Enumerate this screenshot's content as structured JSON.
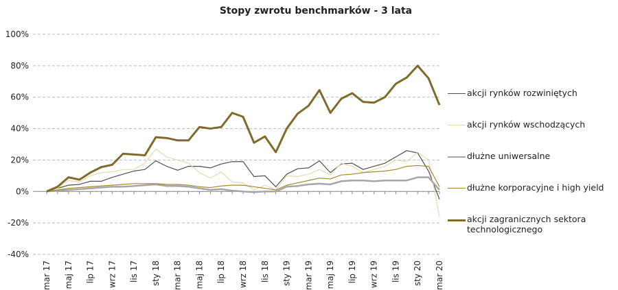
{
  "chart_data": {
    "type": "line",
    "title": "Stopy zwrotu benchmarków - 3 lata",
    "categories": [
      "mar 17",
      null,
      "maj 17",
      null,
      "lip 17",
      null,
      "wrz 17",
      null,
      "lis 17",
      null,
      "sty 18",
      null,
      "mar 18",
      null,
      "maj 18",
      null,
      "lip 18",
      null,
      "wrz 18",
      null,
      "lis 18",
      null,
      "sty 19",
      null,
      "mar 19",
      null,
      "maj 19",
      null,
      "lip 19",
      null,
      "wrz 19",
      null,
      "lis 19",
      null,
      "sty 20",
      null,
      "mar 20"
    ],
    "series": [
      {
        "name": "akcji rynków rozwiniętych",
        "color": "#4d4d4d",
        "width": 1.2,
        "values": [
          0,
          2,
          4,
          4.5,
          6.5,
          6.5,
          9,
          11,
          13,
          14,
          19.5,
          16,
          13.5,
          16,
          16,
          15,
          17.5,
          19,
          19,
          9.5,
          10,
          3,
          11,
          14.5,
          15,
          19.5,
          12,
          17.5,
          18,
          14,
          16,
          18,
          22,
          26,
          24.5,
          13,
          -5
        ]
      },
      {
        "name": "akcji rynków wschodzących",
        "color": "#e6d9ae",
        "width": 1.2,
        "values": [
          0,
          2,
          7,
          6,
          10,
          12,
          12.5,
          14,
          14,
          18,
          27,
          22,
          20,
          18,
          12,
          8.5,
          12.5,
          6,
          5.5,
          1,
          4,
          1,
          10,
          9.5,
          11,
          14,
          10.5,
          18,
          16,
          12,
          14,
          16,
          20,
          19,
          25,
          20,
          -16
        ]
      },
      {
        "name": "dłużne uniwersalne",
        "color": "#a6a6a6",
        "width": 2.5,
        "values": [
          0,
          0.5,
          1,
          1.5,
          2,
          2.5,
          3,
          3,
          3.5,
          4,
          4.5,
          3.5,
          3.5,
          3,
          2,
          1,
          1.5,
          0.5,
          0,
          -0.5,
          0,
          0,
          3,
          3.5,
          4.5,
          5,
          4.5,
          6.5,
          7,
          7,
          6.5,
          7,
          7,
          7,
          9,
          9,
          1
        ]
      },
      {
        "name": "dłużne korporacyjne i high yield",
        "color": "#a08a2e",
        "width": 1.2,
        "values": [
          0,
          1,
          2,
          2.5,
          3,
          3.5,
          4,
          4.5,
          5,
          5,
          5,
          4.5,
          4.5,
          4,
          3,
          2.5,
          3.5,
          4,
          4,
          3,
          2,
          1,
          4,
          5.5,
          7,
          8.5,
          8,
          10.5,
          11,
          12,
          12.5,
          13,
          14,
          16,
          16.5,
          16,
          3
        ]
      },
      {
        "name": "akcji zagranicznych sektora technologicznego",
        "color": "#7f6a2a",
        "width": 3,
        "values": [
          0,
          3,
          9,
          7.5,
          12,
          15.5,
          17,
          24,
          23.5,
          23,
          34.5,
          34,
          32.5,
          32.5,
          41,
          40,
          41,
          50,
          47.5,
          31,
          35,
          25,
          40,
          49.5,
          54.5,
          64.5,
          50,
          59,
          62.5,
          57,
          56.5,
          60,
          68.5,
          72.5,
          80,
          72,
          55
        ]
      }
    ],
    "ylim": [
      -40,
      100
    ],
    "yticks": [
      {
        "value": -40,
        "label": "-40%"
      },
      {
        "value": -20,
        "label": "-20%"
      },
      {
        "value": 0,
        "label": "0%"
      },
      {
        "value": 20,
        "label": "20%"
      },
      {
        "value": 40,
        "label": "40%"
      },
      {
        "value": 60,
        "label": "60%"
      },
      {
        "value": 80,
        "label": "80%"
      },
      {
        "value": 100,
        "label": "100%"
      }
    ],
    "grid": true
  }
}
